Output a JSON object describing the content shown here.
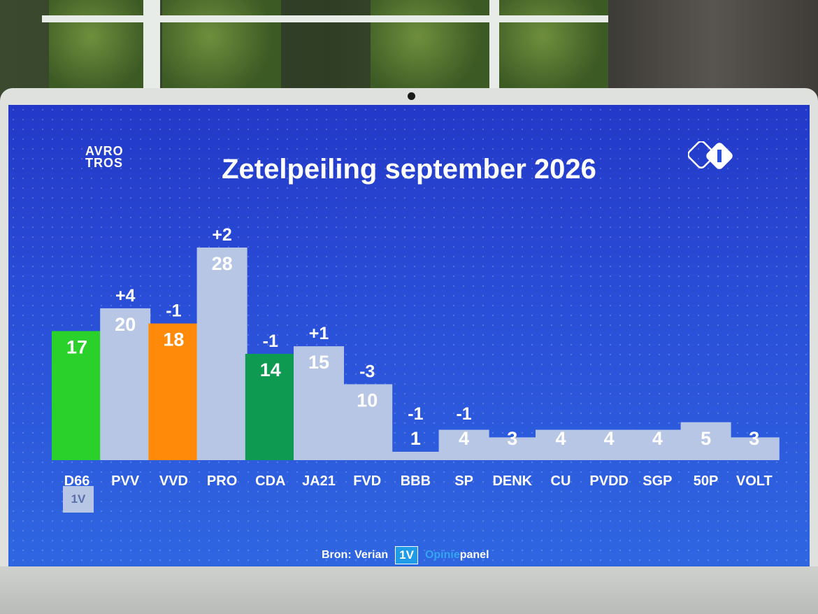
{
  "screen": {
    "broadcaster_logo": "AVRO TROS",
    "channel_logo": "npo 1",
    "title": "Zetelpeiling september 2026",
    "badge": "1V",
    "source_label": "Bron: Verian",
    "source_logo_box": "1V",
    "source_logo_word_1": "Opinie",
    "source_logo_word_2": "panel"
  },
  "colors": {
    "default_bar": "#b8c6e6",
    "d66": "#2bd12b",
    "vvd": "#ff8a0a",
    "cda": "#0f9a52",
    "label": "#ffffff"
  },
  "chart_data": {
    "type": "bar",
    "title": "Zetelpeiling september 2026",
    "categories": [
      "D66",
      "PVV",
      "VVD",
      "PRO",
      "CDA",
      "JA21",
      "FVD",
      "BBB",
      "SP",
      "DENK",
      "CU",
      "PVDD",
      "SGP",
      "50P",
      "VOLT"
    ],
    "values": [
      17,
      20,
      18,
      28,
      14,
      15,
      10,
      1,
      4,
      3,
      4,
      4,
      4,
      5,
      3
    ],
    "changes": [
      "",
      "+4",
      "-1",
      "+2",
      "-1",
      "+1",
      "-3",
      "-1",
      "-1",
      "",
      "",
      "",
      "",
      "",
      ""
    ],
    "bar_colors": [
      "#2bd12b",
      "#b8c6e6",
      "#ff8a0a",
      "#b8c6e6",
      "#0f9a52",
      "#b8c6e6",
      "#b8c6e6",
      "#b8c6e6",
      "#b8c6e6",
      "#b8c6e6",
      "#b8c6e6",
      "#b8c6e6",
      "#b8c6e6",
      "#b8c6e6",
      "#b8c6e6"
    ],
    "ylim": [
      0,
      28
    ],
    "grid": false,
    "legend": "none"
  }
}
